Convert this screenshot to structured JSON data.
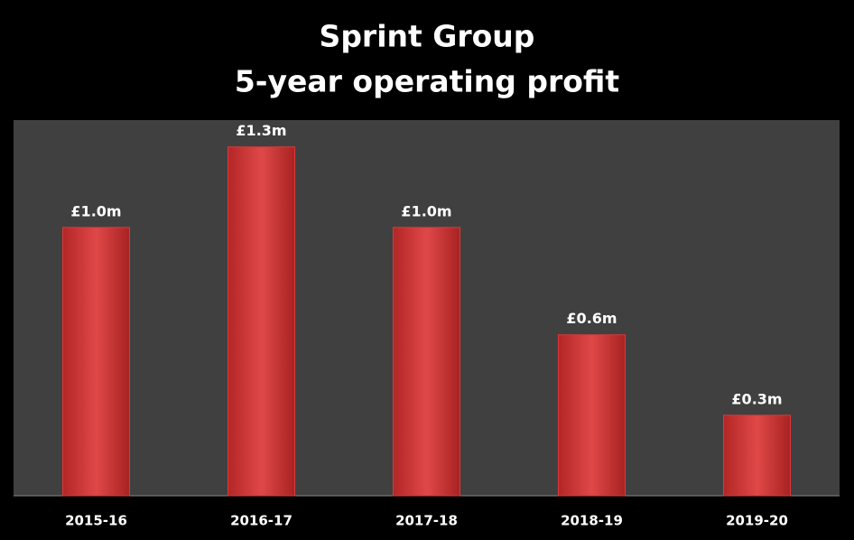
{
  "chart_data": {
    "type": "bar",
    "title": "Sprint Group",
    "subtitle": "5-year operating profit",
    "categories": [
      "2015-16",
      "2016-17",
      "2017-18",
      "2018-19",
      "2019-20"
    ],
    "values": [
      1.0,
      1.3,
      1.0,
      0.6,
      0.3
    ],
    "value_labels": [
      "£1.0m",
      "£1.3m",
      "£1.0m",
      "£0.6m",
      "£0.3m"
    ],
    "color": "#d93a3a",
    "ylim": [
      0,
      1.4
    ]
  }
}
